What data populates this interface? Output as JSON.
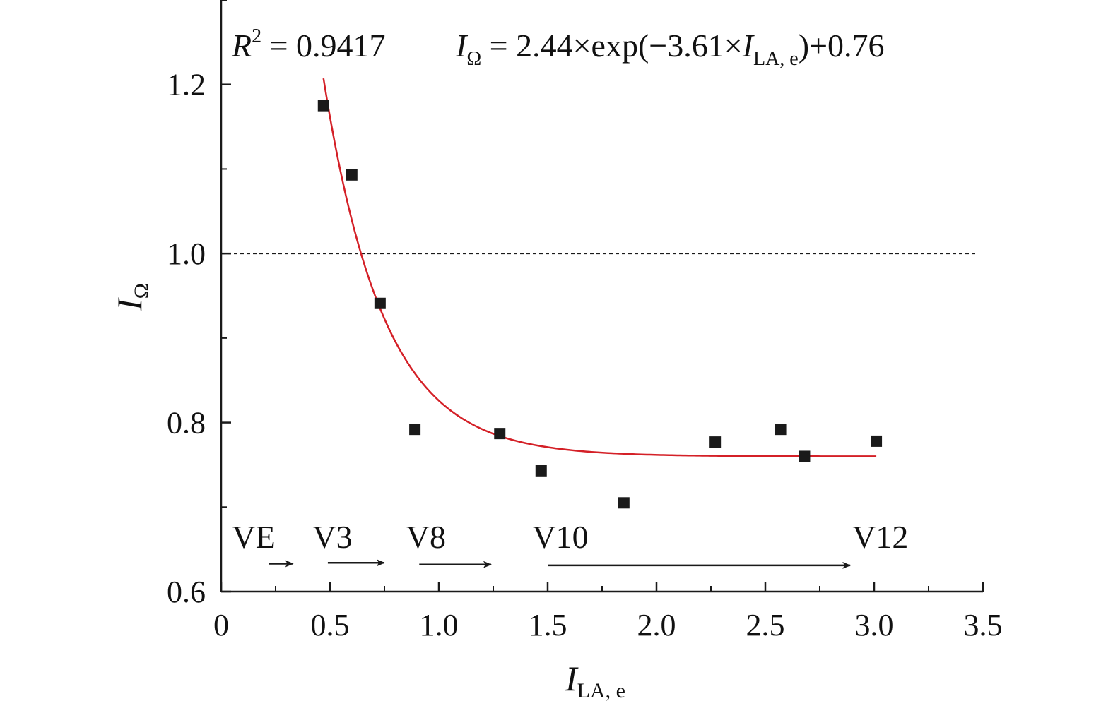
{
  "chart_data": {
    "type": "scatter",
    "equation": {
      "r2_symbol": "R",
      "r2_exp": "2",
      "r2_text": " = 0.9417",
      "lhs": "I",
      "lhs_sub": "Ω",
      "rhs_a": " = 2.44×exp(−3.61×",
      "rhs_var": "I",
      "rhs_var_sub": "LA, e",
      "rhs_b": ")+0.76"
    },
    "xlabel_main": "I",
    "xlabel_sub": "LA, e",
    "ylabel_main": "I",
    "ylabel_sub": "Ω",
    "xlim": [
      0,
      3.5
    ],
    "ylim": [
      0.6,
      1.3
    ],
    "x_ticks": [
      {
        "v": 0,
        "label": "0"
      },
      {
        "v": 0.5,
        "label": "0.5"
      },
      {
        "v": 1.0,
        "label": "1.0"
      },
      {
        "v": 1.5,
        "label": "1.5"
      },
      {
        "v": 2.0,
        "label": "2.0"
      },
      {
        "v": 2.5,
        "label": "2.5"
      },
      {
        "v": 3.0,
        "label": "3.0"
      },
      {
        "v": 3.5,
        "label": "3.5"
      }
    ],
    "y_ticks": [
      {
        "v": 0.6,
        "label": "0.6"
      },
      {
        "v": 0.8,
        "label": "0.8"
      },
      {
        "v": 1.0,
        "label": "1.0"
      },
      {
        "v": 1.2,
        "label": "1.2"
      }
    ],
    "points": [
      {
        "x": 0.47,
        "y": 1.175
      },
      {
        "x": 0.6,
        "y": 1.093
      },
      {
        "x": 0.73,
        "y": 0.941
      },
      {
        "x": 0.89,
        "y": 0.792
      },
      {
        "x": 1.28,
        "y": 0.787
      },
      {
        "x": 1.47,
        "y": 0.743
      },
      {
        "x": 1.85,
        "y": 0.705
      },
      {
        "x": 2.27,
        "y": 0.777
      },
      {
        "x": 2.57,
        "y": 0.792
      },
      {
        "x": 2.68,
        "y": 0.76
      },
      {
        "x": 3.01,
        "y": 0.778
      }
    ],
    "fit": {
      "a": 2.44,
      "b": 3.61,
      "c": 0.76,
      "x_start": 0.47,
      "x_end": 3.01
    },
    "reference_line_y": 1.0,
    "stage_labels": [
      {
        "label": "VE",
        "x": 0.05,
        "y": 0.665
      },
      {
        "label": "V3",
        "x": 0.42,
        "y": 0.665
      },
      {
        "label": "V8",
        "x": 0.85,
        "y": 0.665
      },
      {
        "label": "V10",
        "x": 1.43,
        "y": 0.665
      },
      {
        "label": "V12",
        "x": 2.9,
        "y": 0.665
      }
    ],
    "stage_arrows": [
      {
        "x1": 0.22,
        "x2": 0.33,
        "y": 0.633
      },
      {
        "x1": 0.49,
        "x2": 0.75,
        "y": 0.634
      },
      {
        "x1": 0.91,
        "x2": 1.24,
        "y": 0.632
      },
      {
        "x1": 1.5,
        "x2": 2.89,
        "y": 0.631
      }
    ],
    "colors": {
      "fit": "#d42027",
      "points": "#1a1a1a",
      "axis": "#1a1a1a"
    },
    "grid": false,
    "legend": "none"
  }
}
